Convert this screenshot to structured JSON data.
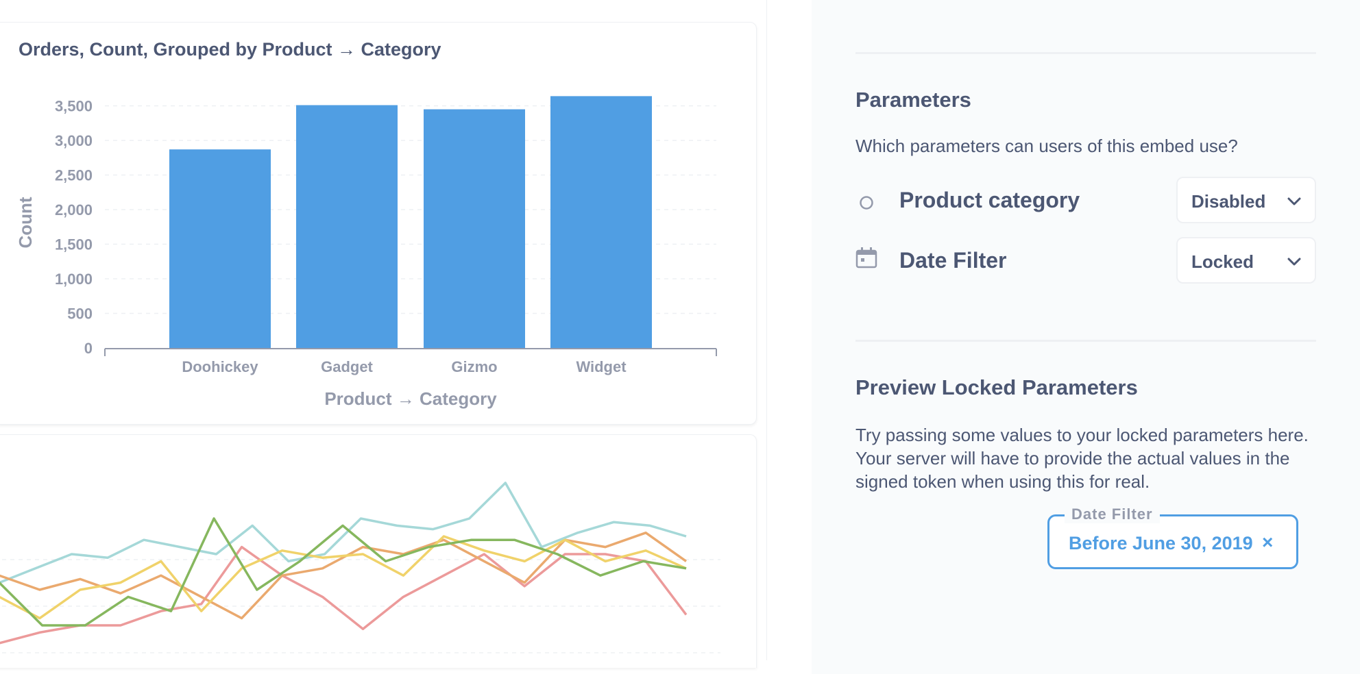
{
  "card": {
    "title": "Orders, Count, Grouped by Product → Category"
  },
  "chart_data": [
    {
      "type": "bar",
      "title": "Orders, Count, Grouped by Product → Category",
      "categories": [
        "Doohickey",
        "Gadget",
        "Gizmo",
        "Widget"
      ],
      "values": [
        2870,
        3510,
        3450,
        3640
      ],
      "ylabel": "Count",
      "xlabel": "Product → Category",
      "ylim": [
        0,
        3600
      ],
      "yticks": [
        "0",
        "500",
        "1,000",
        "1,500",
        "2,000",
        "2,500",
        "3,000",
        "3,500"
      ],
      "color": "#509ee3",
      "grid": "horizontal dashed"
    },
    {
      "type": "line",
      "series": [
        {
          "color": "#a5d8d8",
          "values": [
            22,
            26,
            30,
            29,
            34,
            32,
            30,
            38,
            28,
            30,
            40,
            38,
            37,
            40,
            50,
            32,
            36,
            39,
            38,
            35
          ]
        },
        {
          "color": "#ec9a9a",
          "values": [
            5,
            8,
            10,
            10,
            14,
            16,
            32,
            24,
            18,
            9,
            18,
            24,
            30,
            21,
            30,
            30,
            28,
            13
          ]
        },
        {
          "color": "#eaa96e",
          "values": [
            24,
            20,
            23,
            19,
            24,
            18,
            12,
            24,
            26,
            32,
            30,
            34,
            28,
            22,
            34,
            32,
            36,
            28
          ]
        },
        {
          "color": "#f0d26a",
          "values": [
            18,
            12,
            20,
            22,
            28,
            14,
            26,
            31,
            29,
            30,
            24,
            35,
            31,
            28,
            34,
            28,
            31,
            26
          ]
        },
        {
          "color": "#86b75e",
          "values": [
            22,
            10,
            10,
            18,
            14,
            40,
            20,
            28,
            38,
            28,
            32,
            34,
            34,
            30,
            24,
            28,
            26
          ]
        }
      ]
    }
  ],
  "sidebar": {
    "parameters": {
      "title": "Parameters",
      "description": "Which parameters can users of this embed use?",
      "items": [
        {
          "icon": "circle-icon",
          "label": "Product category",
          "value": "Disabled"
        },
        {
          "icon": "calendar-icon",
          "label": "Date Filter",
          "value": "Locked"
        }
      ]
    },
    "preview": {
      "title": "Preview Locked Parameters",
      "description": "Try passing some values to your locked parameters here. Your server will have to provide the actual values in the signed token when using this for real.",
      "filter": {
        "label": "Date Filter",
        "value": "Before June 30, 2019",
        "close": "×"
      }
    }
  },
  "colors": {
    "accent": "#509ee3",
    "text": "#4c5773",
    "muted": "#949aab",
    "sidebar_bg": "#f9fbfc",
    "border": "#eef0f3"
  }
}
